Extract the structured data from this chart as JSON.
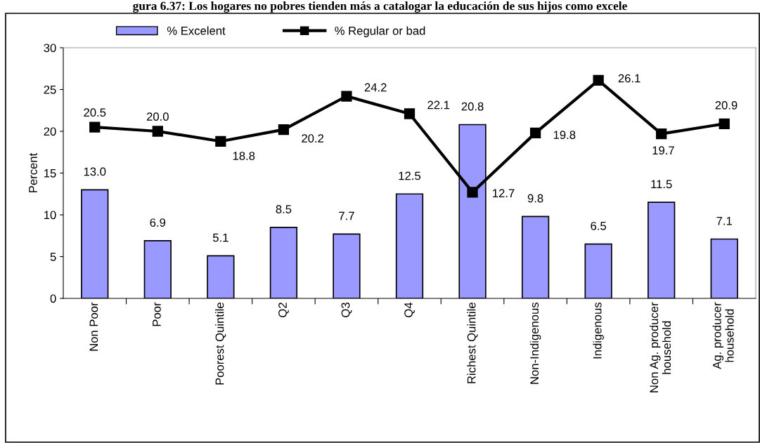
{
  "chart_data": {
    "type": "bar",
    "title": "gura 6.37: Los hogares no pobres tienden más a catalogar la educación de sus hijos como excele",
    "ylabel": "Percent",
    "categories": [
      "Non Poor",
      "Poor",
      "Poorest Quintile",
      "Q2",
      "Q3",
      "Q4",
      "Richest Quintile",
      "Non-Indigenous",
      "Indigenous",
      "Non Ag. producer\nhousehold",
      "Ag. producer\nhousehold"
    ],
    "series": [
      {
        "name": "% Excelent",
        "color": "#9999ff",
        "values": [
          13.0,
          6.9,
          5.1,
          8.5,
          7.7,
          12.5,
          20.8,
          9.8,
          6.5,
          11.5,
          7.1
        ],
        "value_labels": [
          "13.0",
          "6.9",
          "5.1",
          "8.5",
          "7.7",
          "12.5",
          "20.8",
          "9.8",
          "6.5",
          "11.5",
          "7.1"
        ]
      },
      {
        "name": "% Regular or bad",
        "type": "line",
        "color": "#000000",
        "marker": "square",
        "values": [
          20.5,
          20.0,
          18.8,
          20.2,
          24.2,
          22.1,
          12.7,
          19.8,
          26.1,
          19.7,
          20.9
        ],
        "value_labels": [
          "20.5",
          "20.0",
          "18.8",
          "20.2",
          "24.2",
          "22.1",
          "12.7",
          "19.8",
          "26.1",
          "19.7",
          "20.9"
        ]
      }
    ],
    "ylim": [
      0,
      30
    ],
    "yticks": [
      0,
      5,
      10,
      15,
      20,
      25,
      30
    ],
    "grid": false,
    "legend": "top"
  }
}
